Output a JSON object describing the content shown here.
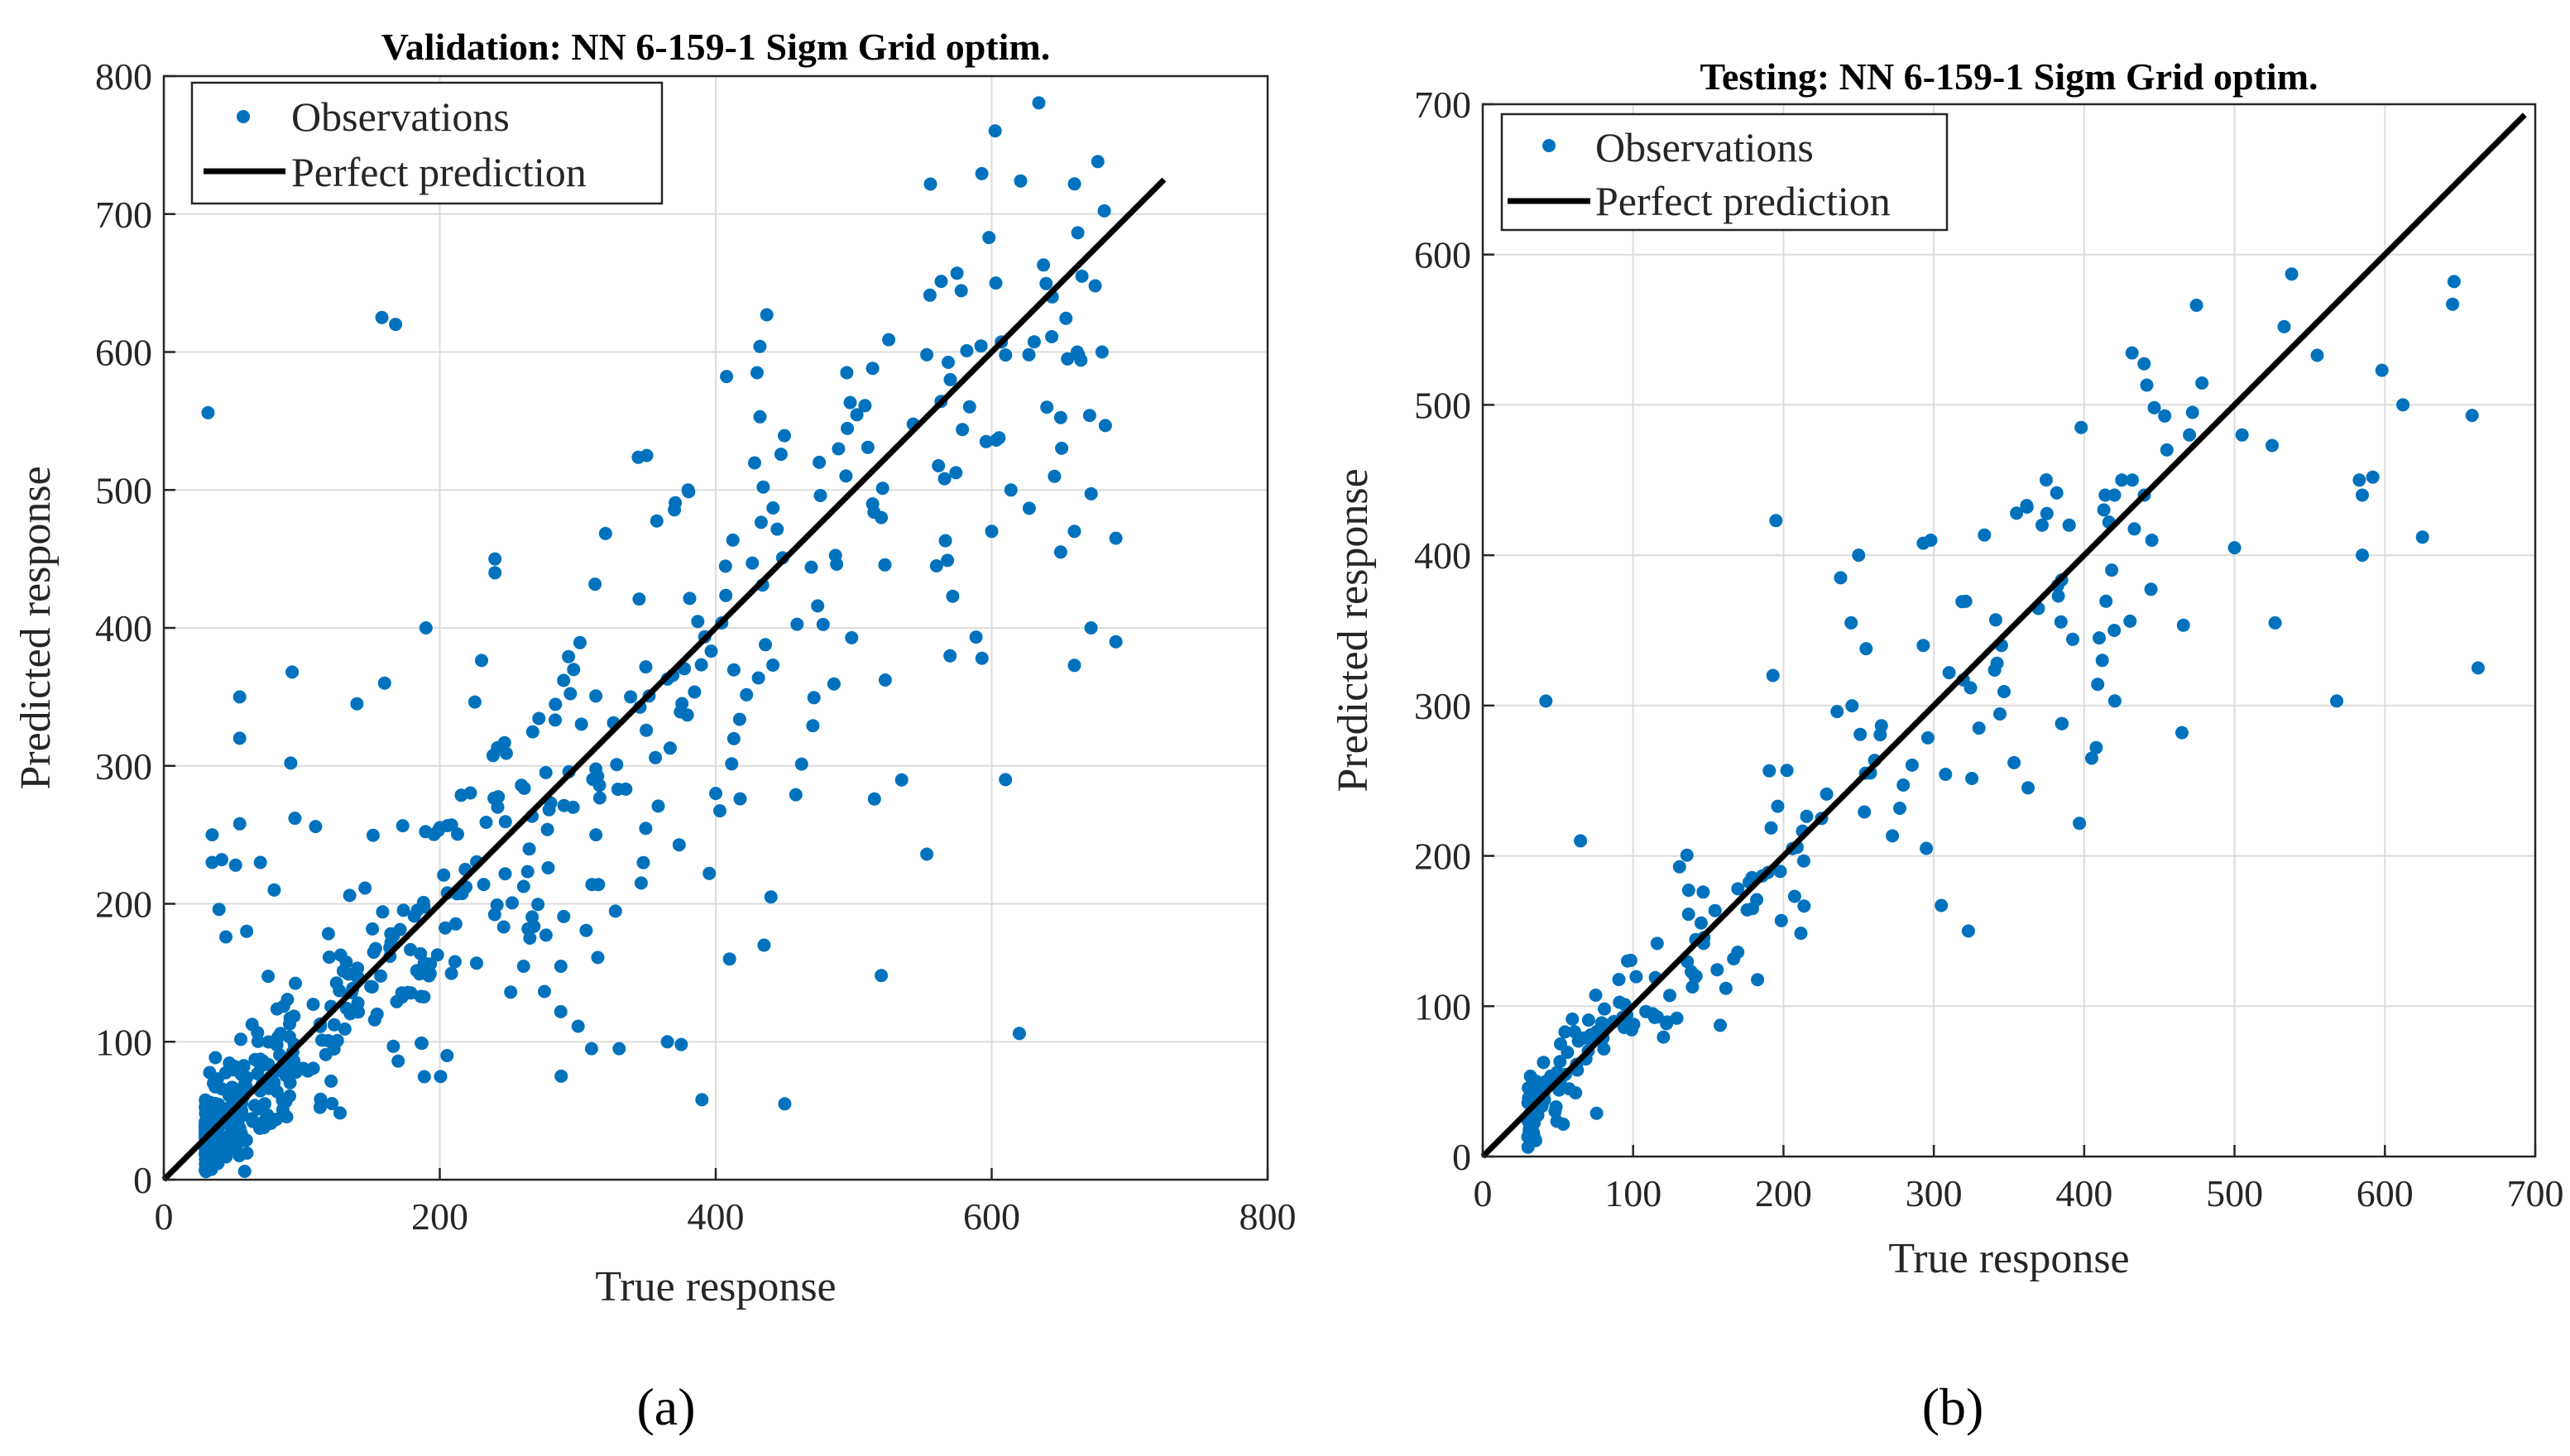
{
  "colors": {
    "points": "#0072BD",
    "line": "#000000",
    "grid": "#dcdcdc",
    "axis": "#262626"
  },
  "chart_data": [
    {
      "type": "scatter",
      "panel_label": "(a)",
      "title": "Validation: NN 6-159-1 Sigm Grid optim.",
      "xlabel": "True response",
      "ylabel": "Predicted response",
      "xlim": [
        0,
        800
      ],
      "ylim": [
        0,
        800
      ],
      "xticks": [
        "0",
        "200",
        "400",
        "600",
        "800"
      ],
      "yticks": [
        "0",
        "100",
        "200",
        "300",
        "400",
        "500",
        "600",
        "700",
        "800"
      ],
      "grid": true,
      "legend": {
        "position": "top-left",
        "entries": [
          "Observations",
          "Perfect prediction"
        ]
      },
      "line": {
        "name": "Perfect prediction",
        "x": [
          0,
          725
        ],
        "y": [
          0,
          725
        ]
      },
      "series": [
        {
          "name": "Observations",
          "seed": 17,
          "bulk": {
            "count": 520,
            "xmin": 30,
            "xmax": 690,
            "noise_ratio": 0.16,
            "noise_floor": 14,
            "skew": 2.4
          },
          "outliers": [
            [
              32,
              556
            ],
            [
              158,
              625
            ],
            [
              168,
              620
            ],
            [
              598,
              683
            ],
            [
              603,
              650
            ],
            [
              675,
              648
            ],
            [
              437,
              627
            ],
            [
              432,
              604
            ],
            [
              430,
              585
            ],
            [
              495,
              585
            ],
            [
              553,
              598
            ],
            [
              570,
              580
            ],
            [
              627,
              598
            ],
            [
              655,
              595
            ],
            [
              662,
              600
            ],
            [
              640,
              560
            ],
            [
              690,
              390
            ],
            [
              672,
              400
            ],
            [
              690,
              465
            ],
            [
              650,
              455
            ],
            [
              614,
              500
            ],
            [
              593,
              378
            ],
            [
              610,
              290
            ],
            [
              620,
              106
            ],
            [
              553,
              236
            ],
            [
              515,
              276
            ],
            [
              520,
              148
            ],
            [
              450,
              55
            ],
            [
              390,
              58
            ],
            [
              410,
              160
            ],
            [
              435,
              170
            ],
            [
              440,
              205
            ],
            [
              400,
              280
            ],
            [
              365,
              100
            ],
            [
              375,
              98
            ],
            [
              330,
              95
            ],
            [
              310,
              95
            ],
            [
              288,
              75
            ],
            [
              240,
              440
            ],
            [
              240,
              450
            ],
            [
              190,
              400
            ],
            [
              160,
              360
            ],
            [
              140,
              345
            ],
            [
              93,
              368
            ],
            [
              55,
              350
            ],
            [
              55,
              320
            ],
            [
              92,
              302
            ],
            [
              110,
              256
            ],
            [
              95,
              262
            ],
            [
              55,
              258
            ],
            [
              35,
              250
            ],
            [
              35,
              230
            ],
            [
              42,
              232
            ],
            [
              52,
              228
            ],
            [
              40,
              196
            ],
            [
              45,
              176
            ],
            [
              60,
              180
            ],
            [
              80,
              210
            ],
            [
              70,
              230
            ],
            [
              150,
              140
            ],
            [
              350,
              525
            ],
            [
              380,
              500
            ],
            [
              475,
              520
            ],
            [
              520,
              480
            ],
            [
              560,
              445
            ],
            [
              600,
              470
            ],
            [
              660,
              470
            ],
            [
              680,
              600
            ]
          ]
        }
      ]
    },
    {
      "type": "scatter",
      "panel_label": "(b)",
      "title": "Testing: NN 6-159-1 Sigm Grid optim.",
      "xlabel": "True response",
      "ylabel": "Predicted response",
      "xlim": [
        0,
        700
      ],
      "ylim": [
        0,
        700
      ],
      "xticks": [
        "0",
        "100",
        "200",
        "300",
        "400",
        "500",
        "600",
        "700"
      ],
      "yticks": [
        "0",
        "100",
        "200",
        "300",
        "400",
        "500",
        "600",
        "700"
      ],
      "grid": true,
      "legend": {
        "position": "top-left",
        "entries": [
          "Observations",
          "Perfect prediction"
        ]
      },
      "line": {
        "name": "Perfect prediction",
        "x": [
          0,
          693
        ],
        "y": [
          0,
          693
        ]
      },
      "series": [
        {
          "name": "Observations",
          "seed": 41,
          "bulk": {
            "count": 200,
            "xmin": 30,
            "xmax": 480,
            "noise_ratio": 0.12,
            "noise_floor": 10,
            "skew": 2.2
          },
          "outliers": [
            [
              42,
              303
            ],
            [
              65,
              210
            ],
            [
              195,
              423
            ],
            [
              193,
              320
            ],
            [
              238,
              385
            ],
            [
              245,
              355
            ],
            [
              250,
              400
            ],
            [
              293,
              408
            ],
            [
              298,
              410
            ],
            [
              293,
              340
            ],
            [
              295,
              205
            ],
            [
              305,
              167
            ],
            [
              323,
              150
            ],
            [
              330,
              285
            ],
            [
              345,
              340
            ],
            [
              355,
              428
            ],
            [
              362,
              432
            ],
            [
              372,
              420
            ],
            [
              390,
              420
            ],
            [
              398,
              485
            ],
            [
              385,
              288
            ],
            [
              405,
              265
            ],
            [
              408,
              272
            ],
            [
              410,
              345
            ],
            [
              412,
              330
            ],
            [
              420,
              350
            ],
            [
              414,
              440
            ],
            [
              425,
              450
            ],
            [
              432,
              450
            ],
            [
              440,
              440
            ],
            [
              445,
              410
            ],
            [
              455,
              470
            ],
            [
              465,
              282
            ],
            [
              470,
              480
            ],
            [
              472,
              495
            ],
            [
              500,
              405
            ],
            [
              505,
              480
            ],
            [
              525,
              473
            ],
            [
              527,
              355
            ],
            [
              533,
              552
            ],
            [
              538,
              587
            ],
            [
              555,
              533
            ],
            [
              568,
              303
            ],
            [
              583,
              450
            ],
            [
              585,
              400
            ],
            [
              585,
              440
            ],
            [
              592,
              452
            ],
            [
              598,
              523
            ],
            [
              612,
              500
            ],
            [
              625,
              412
            ],
            [
              645,
              567
            ],
            [
              646,
              582
            ],
            [
              658,
              493
            ],
            [
              662,
              325
            ]
          ]
        }
      ]
    }
  ]
}
